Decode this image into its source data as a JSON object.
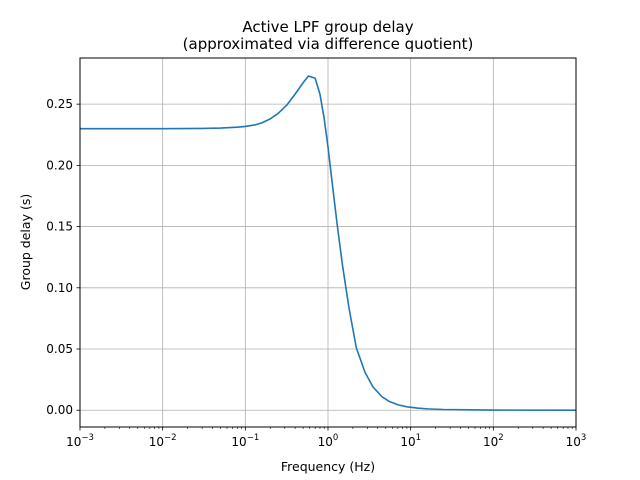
{
  "chart_data": {
    "type": "line",
    "title": "Active LPF group delay",
    "subtitle": "(approximated via difference quotient)",
    "xlabel": "Frequency (Hz)",
    "ylabel": "Group delay (s)",
    "xscale": "log",
    "xlim": [
      0.001,
      1000
    ],
    "ylim": [
      -0.0137,
      0.2877
    ],
    "grid": true,
    "line_color": "#1f77b4",
    "x_ticks": [
      {
        "base": "10",
        "exp": "−3",
        "value": 0.001
      },
      {
        "base": "10",
        "exp": "−2",
        "value": 0.01
      },
      {
        "base": "10",
        "exp": "−1",
        "value": 0.1
      },
      {
        "base": "10",
        "exp": "0",
        "value": 1
      },
      {
        "base": "10",
        "exp": "1",
        "value": 10
      },
      {
        "base": "10",
        "exp": "2",
        "value": 100
      },
      {
        "base": "10",
        "exp": "3",
        "value": 1000
      }
    ],
    "y_ticks": [
      {
        "label": "0.00",
        "value": 0.0
      },
      {
        "label": "0.05",
        "value": 0.05
      },
      {
        "label": "0.10",
        "value": 0.1
      },
      {
        "label": "0.15",
        "value": 0.15
      },
      {
        "label": "0.20",
        "value": 0.2
      },
      {
        "label": "0.25",
        "value": 0.25
      }
    ],
    "series": [
      {
        "x": [
          0.001,
          0.01,
          0.03,
          0.05,
          0.08,
          0.1,
          0.13,
          0.16,
          0.2,
          0.25,
          0.32,
          0.4,
          0.5,
          0.58,
          0.7,
          0.8,
          0.9,
          1.0,
          1.15,
          1.3,
          1.5,
          1.8,
          2.2,
          2.8,
          3.5,
          4.5,
          5.5,
          7,
          9,
          12,
          16,
          25,
          50,
          100,
          1000
        ],
        "y": [
          0.23,
          0.23,
          0.2302,
          0.2305,
          0.2312,
          0.2318,
          0.233,
          0.2348,
          0.238,
          0.2425,
          0.2495,
          0.2582,
          0.2675,
          0.273,
          0.2712,
          0.258,
          0.238,
          0.215,
          0.18,
          0.15,
          0.118,
          0.083,
          0.051,
          0.031,
          0.019,
          0.011,
          0.0072,
          0.0045,
          0.0028,
          0.0018,
          0.0011,
          0.0006,
          0.0003,
          0.0001,
          0.0
        ]
      }
    ]
  }
}
